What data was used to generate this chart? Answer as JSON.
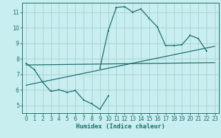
{
  "xlabel": "Humidex (Indice chaleur)",
  "bg_color": "#c8eef0",
  "line_color": "#1a6b6b",
  "grid_color": "#aad4d4",
  "xlim": [
    -0.5,
    23.5
  ],
  "ylim": [
    4.5,
    11.6
  ],
  "yticks": [
    5,
    6,
    7,
    8,
    9,
    10,
    11
  ],
  "xticks": [
    0,
    1,
    2,
    3,
    4,
    5,
    6,
    7,
    8,
    9,
    10,
    11,
    12,
    13,
    14,
    15,
    16,
    17,
    18,
    19,
    20,
    21,
    22,
    23
  ],
  "curve1_x": [
    0,
    1,
    2,
    3,
    4,
    5,
    6,
    7,
    8,
    9,
    10
  ],
  "curve1_y": [
    7.7,
    7.3,
    6.5,
    5.9,
    6.0,
    5.85,
    5.95,
    5.35,
    5.1,
    4.75,
    5.6
  ],
  "curve2_x": [
    9,
    10,
    11,
    12,
    13,
    14,
    15,
    16,
    17,
    18,
    19,
    20,
    21,
    22
  ],
  "curve2_y": [
    7.4,
    9.8,
    11.3,
    11.35,
    11.0,
    11.2,
    10.6,
    10.05,
    8.85,
    8.85,
    8.9,
    9.5,
    9.3,
    8.5
  ],
  "line1_x": [
    0,
    23
  ],
  "line1_y": [
    7.6,
    7.75
  ],
  "line2_x": [
    0,
    23
  ],
  "line2_y": [
    6.3,
    8.8
  ]
}
